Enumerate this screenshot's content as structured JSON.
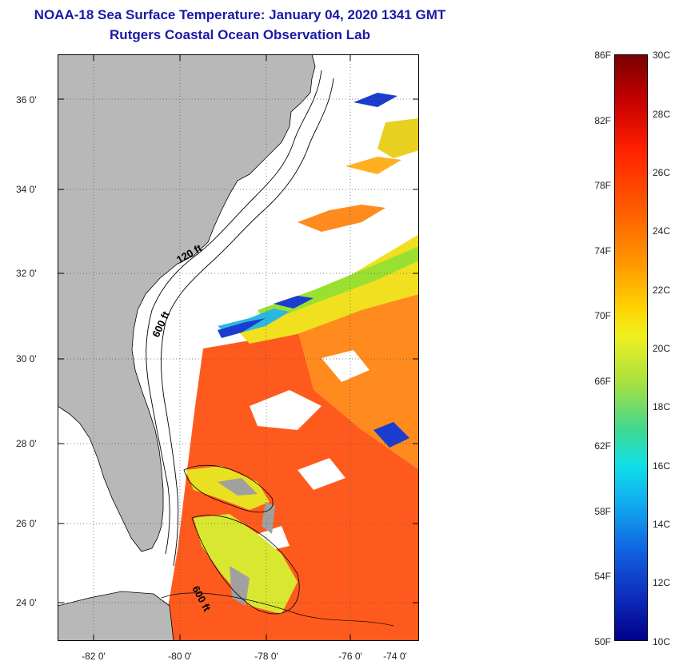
{
  "title": "NOAA-18 Sea Surface Temperature:  January 04, 2020 1341 GMT",
  "subtitle": "Rutgers Coastal Ocean Observation Lab",
  "latitude_labels": [
    "36 0'",
    "34 0'",
    "32 0'",
    "30 0'",
    "28 0'",
    "26 0'",
    "24 0'"
  ],
  "longitude_labels": [
    "-82 0'",
    "-80 0'",
    "-78 0'",
    "-76 0'",
    "-74 0'"
  ],
  "contour_labels": [
    "120 ft",
    "600 ft",
    "600 ft"
  ],
  "colorbar": {
    "fahrenheit_labels": [
      "86F",
      "82F",
      "78F",
      "74F",
      "70F",
      "66F",
      "62F",
      "58F",
      "54F",
      "50F"
    ],
    "celsius_labels": [
      "30C",
      "28C",
      "26C",
      "24C",
      "22C",
      "20C",
      "18C",
      "16C",
      "14C",
      "12C",
      "10C"
    ]
  },
  "colors": {
    "title": "#1a1aa6",
    "land": "#b8b8b8",
    "no_data": "#ffffff",
    "warm": "#ff5a1e",
    "cool": "#1a3ccf"
  }
}
